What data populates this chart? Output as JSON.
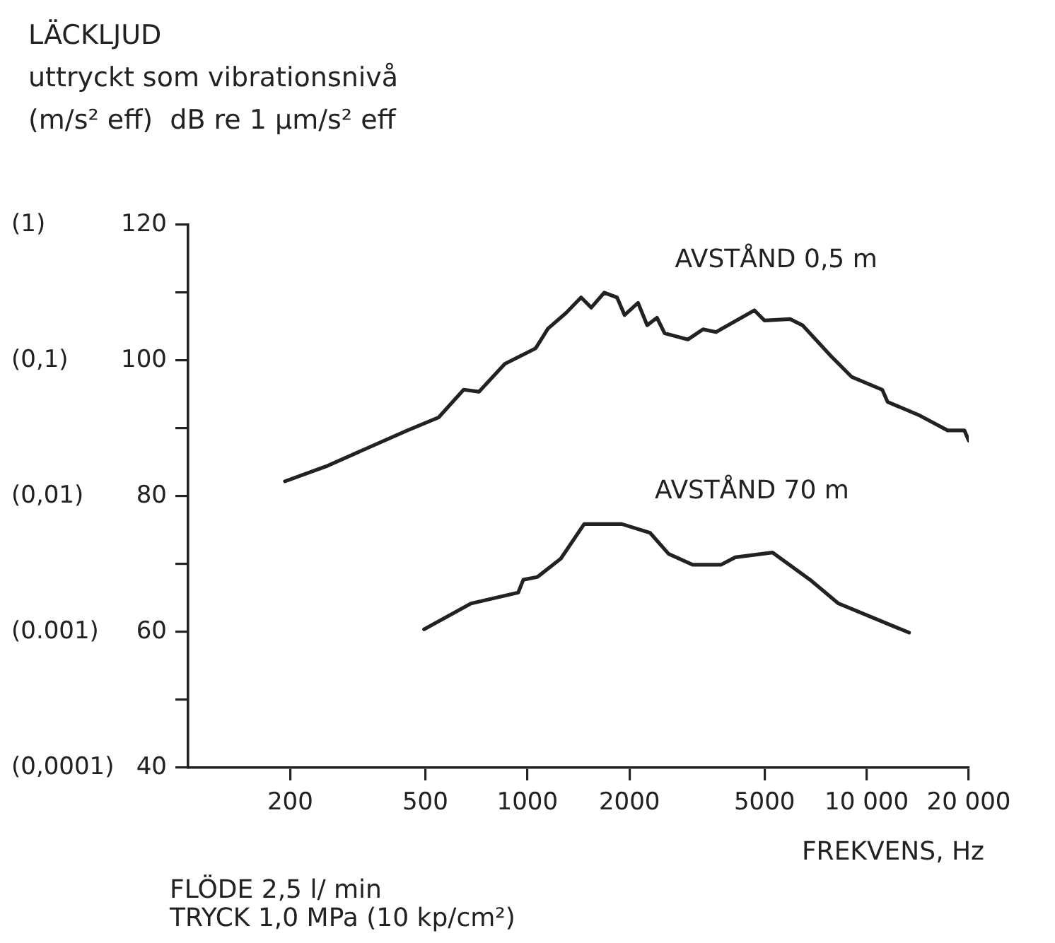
{
  "chart_data": {
    "type": "line",
    "title": "LÄCKLJUD",
    "ylabel": "uttryckt som vibrationsnivå\n(m/s² eff)  dB re 1 μm/s² eff",
    "xlabel": "FREKVENS, Hz",
    "log": "x",
    "xlim": [
      100,
      20000
    ],
    "xticks": [
      200,
      500,
      1000,
      2000,
      5000,
      {
        "value": 10000,
        "label": "10 000"
      },
      {
        "value": 20000,
        "label": "20 000"
      }
    ],
    "ylim": [
      40,
      120
    ],
    "yticks": [
      40,
      {
        "value": 50,
        "label": null
      },
      60,
      {
        "value": 70,
        "label": null
      },
      80,
      {
        "value": 90,
        "label": null
      },
      100,
      {
        "value": 110,
        "label": null
      },
      120
    ],
    "marker": "none",
    "line_style": "solid",
    "legend": false,
    "series": [
      {
        "name": "AVSTÅND 0,5 m",
        "color": "#222222",
        "x": [
          193,
          255,
          443,
          547,
          649,
          720,
          858,
          1058,
          1150,
          1300,
          1440,
          1543,
          1685,
          1838,
          1935,
          2120,
          2255,
          2410,
          2540,
          2972,
          3295,
          3600,
          4670,
          5000,
          5950,
          6470,
          7870,
          9030,
          11120,
          11530,
          14200,
          15230,
          17330,
          19420,
          20000
        ],
        "values": [
          82.2,
          84.4,
          89.7,
          91.6,
          95.7,
          95.4,
          99.5,
          101.8,
          104.7,
          107,
          109.3,
          107.8,
          110,
          109.3,
          106.7,
          108.5,
          105.2,
          106.3,
          104,
          103.1,
          104.6,
          104.2,
          107.4,
          105.9,
          106.1,
          105.2,
          100.6,
          97.6,
          95.7,
          93.9,
          92,
          91.2,
          89.7,
          89.7,
          88.2
        ]
      },
      {
        "name": "AVSTÅND 70 m",
        "color": "#222222",
        "x": [
          496,
          682,
          940,
          973,
          1070,
          1255,
          1470,
          1900,
          2300,
          2610,
          3070,
          3720,
          4100,
          5280,
          6810,
          8260,
          13340
        ],
        "values": [
          60.4,
          64.2,
          65.8,
          67.7,
          68.1,
          70.8,
          75.9,
          75.9,
          74.6,
          71.5,
          69.9,
          69.9,
          71,
          71.7,
          67.7,
          64.2,
          59.9
        ]
      }
    ],
    "annotations": [
      "(0,0001)",
      "(0.001)",
      "(0,01)",
      "(0,1)",
      "(1)",
      "FLÖDE 2,5 l/ min",
      "TRYCK 1,0 MPa (10 kp/cm²)"
    ]
  }
}
